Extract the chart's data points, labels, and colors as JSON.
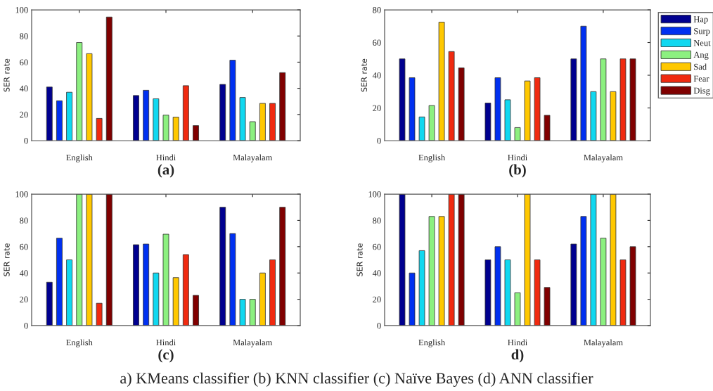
{
  "chart_data": [
    {
      "type": "bar",
      "xlabel": "(a)",
      "ylabel": "SER rate",
      "categories": [
        "English",
        "Hindi",
        "Malayalam"
      ],
      "ylim": [
        0,
        100
      ],
      "yticks": [
        0,
        20,
        40,
        60,
        80,
        100
      ],
      "grid": false,
      "legend": false,
      "series": [
        {
          "color": "#00008f",
          "values": [
            41,
            34.5,
            43
          ]
        },
        {
          "color": "#0030f0",
          "values": [
            30.5,
            38.5,
            61.5
          ]
        },
        {
          "color": "#10d8f0",
          "values": [
            37,
            32,
            33
          ]
        },
        {
          "color": "#8cf080",
          "values": [
            75,
            19.5,
            14.5
          ]
        },
        {
          "color": "#ffc800",
          "values": [
            66.5,
            18,
            28.5
          ]
        },
        {
          "color": "#f02a10",
          "values": [
            17,
            42,
            28.5
          ]
        },
        {
          "color": "#800000",
          "values": [
            94.5,
            11.5,
            52
          ]
        }
      ]
    },
    {
      "type": "bar",
      "xlabel": "(b)",
      "ylabel": "SER rate",
      "categories": [
        "English",
        "Hindi",
        "Malayalam"
      ],
      "ylim": [
        0,
        80
      ],
      "yticks": [
        0,
        20,
        40,
        60,
        80
      ],
      "grid": false,
      "legend": "right",
      "series": [
        {
          "name": "Hap",
          "color": "#00008f",
          "values": [
            50,
            23,
            50
          ]
        },
        {
          "name": "Surp",
          "color": "#0030f0",
          "values": [
            38.5,
            38.5,
            70
          ]
        },
        {
          "name": "Neut",
          "color": "#10d8f0",
          "values": [
            14.5,
            25,
            30
          ]
        },
        {
          "name": "Ang",
          "color": "#8cf080",
          "values": [
            21.5,
            8,
            50
          ]
        },
        {
          "name": "Sad",
          "color": "#ffc800",
          "values": [
            72.5,
            36.5,
            30
          ]
        },
        {
          "name": "Fear",
          "color": "#f02a10",
          "values": [
            54.5,
            38.5,
            50
          ]
        },
        {
          "name": "Disg",
          "color": "#800000",
          "values": [
            44.5,
            15.5,
            50
          ]
        }
      ]
    },
    {
      "type": "bar",
      "xlabel": "(c)",
      "ylabel": "SER rate",
      "categories": [
        "English",
        "Hindi",
        "Malayalam"
      ],
      "ylim": [
        0,
        100
      ],
      "yticks": [
        0,
        20,
        40,
        60,
        80,
        100
      ],
      "grid": false,
      "legend": false,
      "series": [
        {
          "color": "#00008f",
          "values": [
            33,
            61.5,
            90
          ]
        },
        {
          "color": "#0030f0",
          "values": [
            66.5,
            62,
            70
          ]
        },
        {
          "color": "#10d8f0",
          "values": [
            50,
            40,
            20
          ]
        },
        {
          "color": "#8cf080",
          "values": [
            100,
            69.5,
            20
          ]
        },
        {
          "color": "#ffc800",
          "values": [
            100,
            36.5,
            40
          ]
        },
        {
          "color": "#f02a10",
          "values": [
            17,
            54,
            50
          ]
        },
        {
          "color": "#800000",
          "values": [
            100,
            23,
            90
          ]
        }
      ]
    },
    {
      "type": "bar",
      "xlabel": "d)",
      "ylabel": "SER rate",
      "categories": [
        "English",
        "Hindi",
        "Malayalam"
      ],
      "ylim": [
        0,
        100
      ],
      "yticks": [
        0,
        20,
        40,
        60,
        80,
        100
      ],
      "grid": false,
      "legend": false,
      "annotations": [
        "a) KMeans classifier (b) KNN classifier (c) Naïve Bayes (d) ANN classifier"
      ],
      "series": [
        {
          "color": "#00008f",
          "values": [
            100,
            50,
            62
          ]
        },
        {
          "color": "#0030f0",
          "values": [
            40,
            60,
            83
          ]
        },
        {
          "color": "#10d8f0",
          "values": [
            57,
            50,
            100
          ]
        },
        {
          "color": "#8cf080",
          "values": [
            83,
            25,
            66.5
          ]
        },
        {
          "color": "#ffc800",
          "values": [
            83,
            100,
            100
          ]
        },
        {
          "color": "#f02a10",
          "values": [
            100,
            50,
            50
          ]
        },
        {
          "color": "#800000",
          "values": [
            100,
            29,
            60
          ]
        }
      ]
    }
  ]
}
